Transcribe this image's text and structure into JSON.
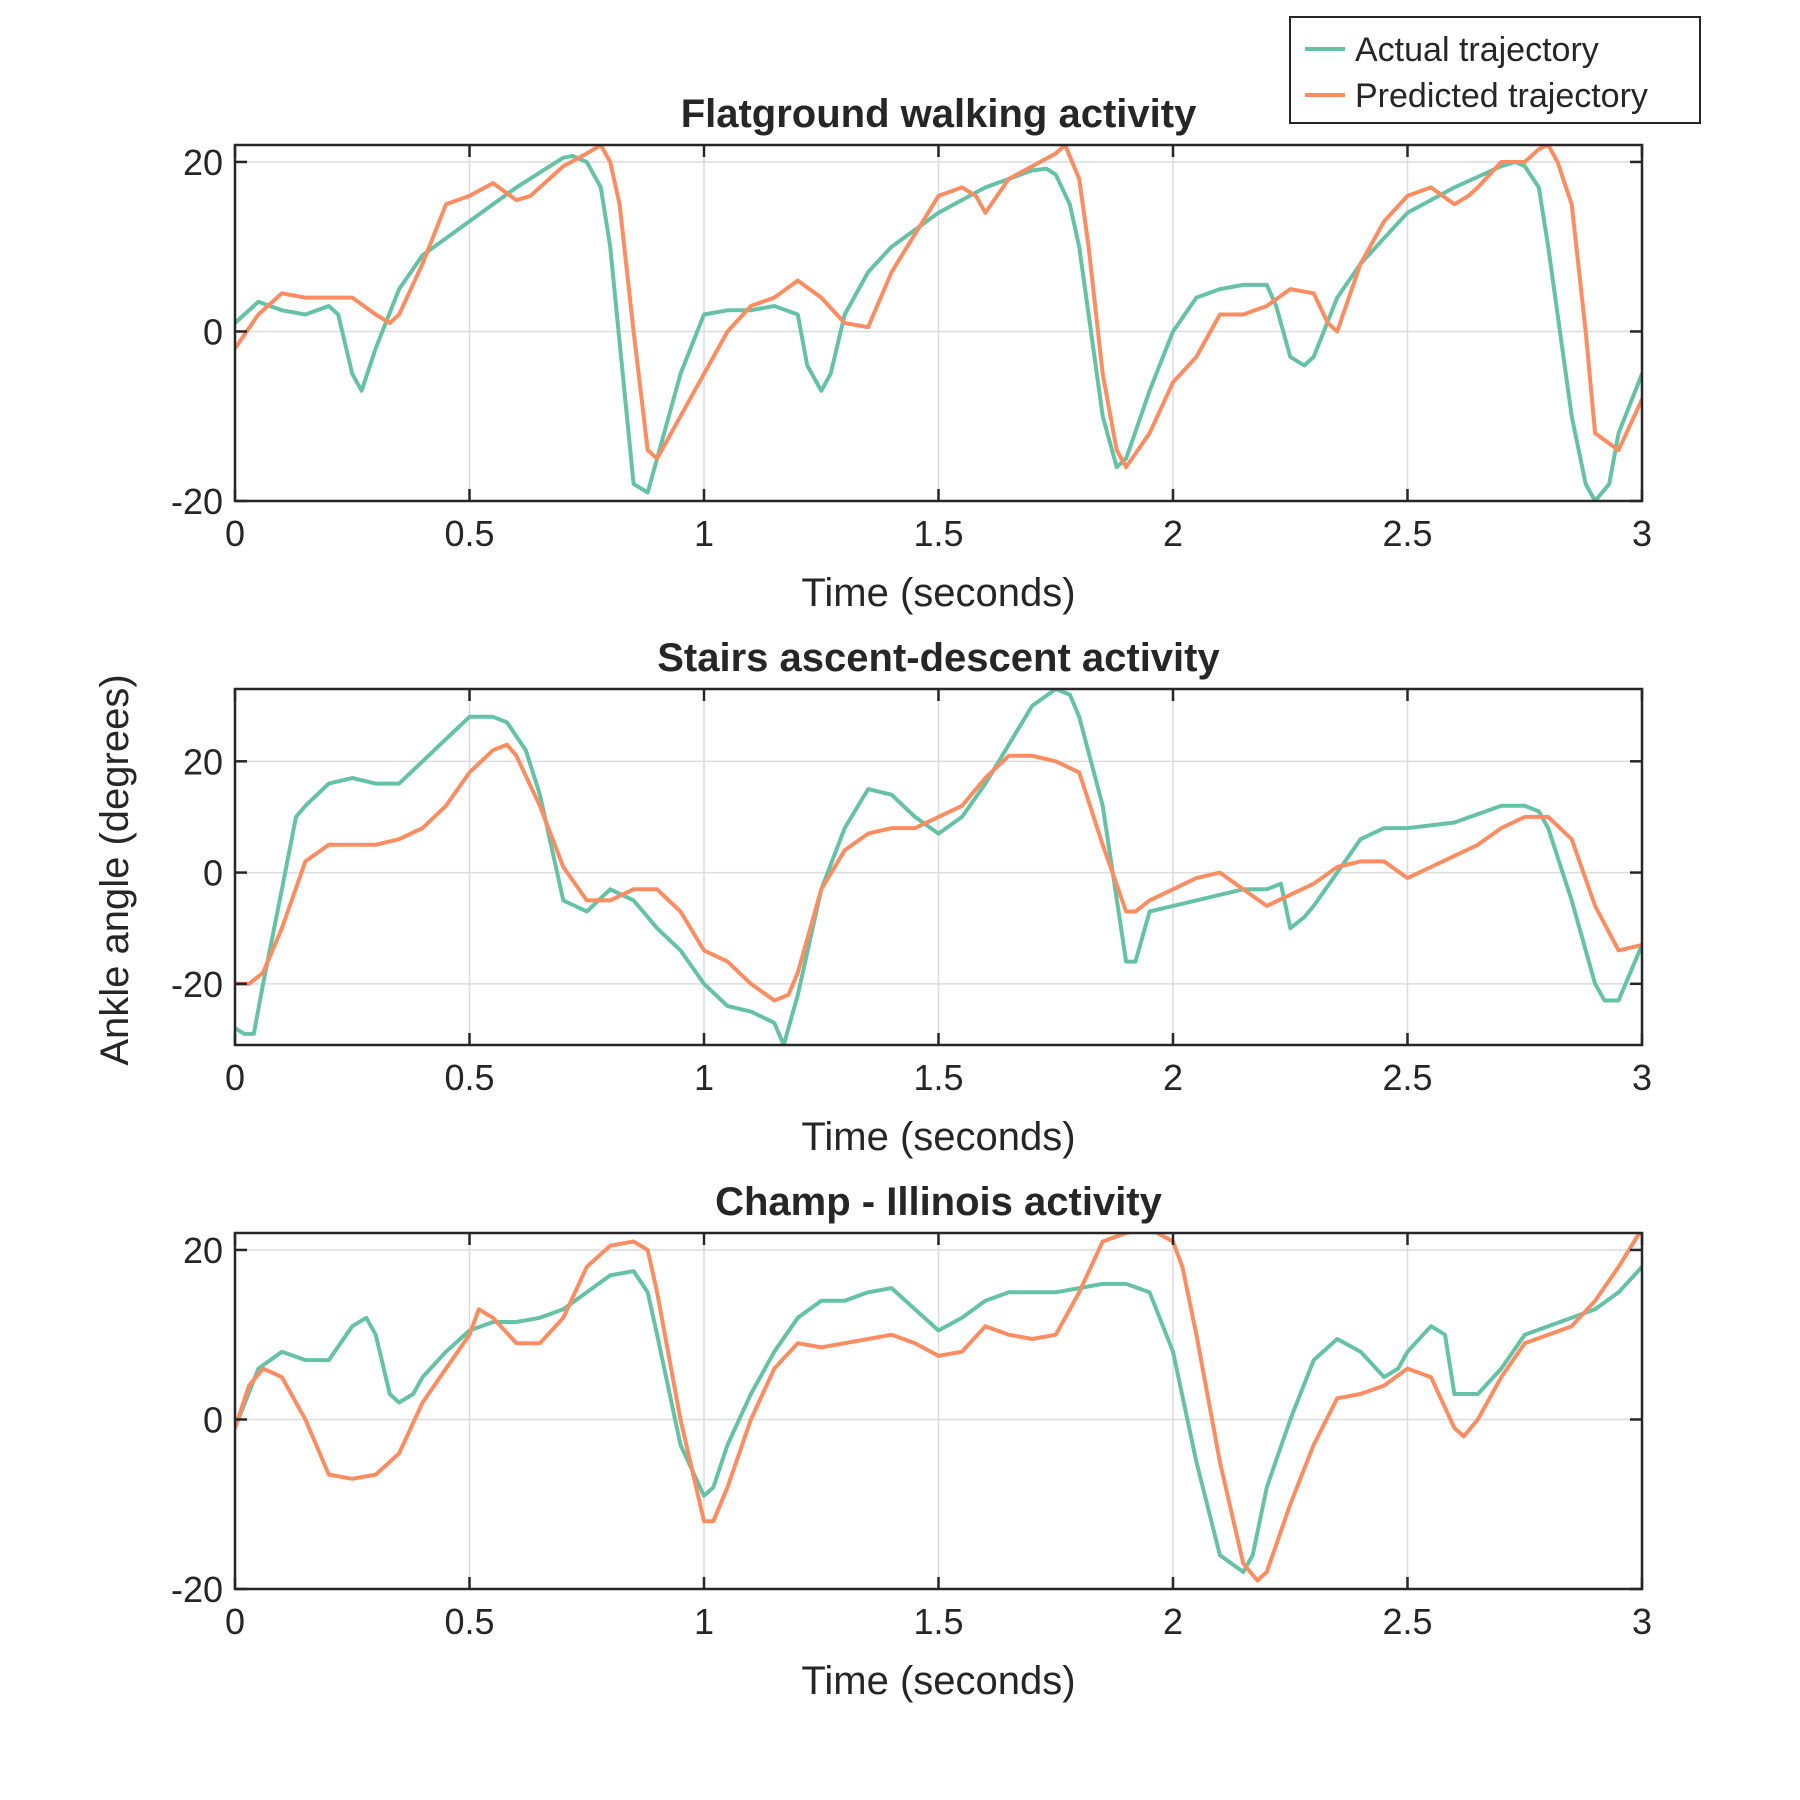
{
  "figure": {
    "ylabel": "Ankle angle (degrees)",
    "legend": {
      "position": "top-right",
      "items": [
        {
          "label": "Actual trajectory",
          "color": "#66c2a5"
        },
        {
          "label": "Predicted trajectory",
          "color": "#fc8d62"
        }
      ]
    }
  },
  "chart_data": [
    {
      "type": "line",
      "title": "Flatground walking activity",
      "xlabel": "Time (seconds)",
      "ylabel": "",
      "xlim": [
        0,
        3
      ],
      "ylim": [
        -20,
        22
      ],
      "xticks": [
        0,
        0.5,
        1,
        1.5,
        2,
        2.5,
        3
      ],
      "xtick_labels": [
        "0",
        "0.5",
        "1",
        "1.5",
        "2",
        "2.5",
        "3"
      ],
      "yticks": [
        -20,
        0,
        20
      ],
      "ytick_labels": [
        "-20",
        "0",
        "20"
      ],
      "grid": true,
      "series": [
        {
          "name": "Actual trajectory",
          "color": "#66c2a5",
          "x": [
            0,
            0.05,
            0.1,
            0.15,
            0.2,
            0.22,
            0.25,
            0.27,
            0.3,
            0.35,
            0.4,
            0.5,
            0.6,
            0.7,
            0.72,
            0.75,
            0.78,
            0.8,
            0.85,
            0.88,
            0.9,
            0.95,
            1.0,
            1.05,
            1.1,
            1.15,
            1.2,
            1.22,
            1.25,
            1.27,
            1.3,
            1.35,
            1.4,
            1.5,
            1.6,
            1.7,
            1.73,
            1.75,
            1.78,
            1.8,
            1.85,
            1.88,
            1.9,
            1.95,
            2.0,
            2.05,
            2.1,
            2.15,
            2.2,
            2.22,
            2.25,
            2.28,
            2.3,
            2.35,
            2.4,
            2.5,
            2.6,
            2.7,
            2.73,
            2.75,
            2.78,
            2.8,
            2.85,
            2.88,
            2.9,
            2.93,
            2.95,
            3.0
          ],
          "y": [
            1,
            3.5,
            2.5,
            2,
            3,
            2,
            -5,
            -7,
            -2,
            5,
            9,
            13,
            17,
            20.5,
            20.7,
            20,
            17,
            10,
            -18,
            -19,
            -15,
            -5,
            2,
            2.5,
            2.5,
            3,
            2,
            -4,
            -7,
            -5,
            2,
            7,
            10,
            14,
            17,
            19,
            19.2,
            18.5,
            15,
            10,
            -10,
            -16,
            -15,
            -7,
            0,
            4,
            5,
            5.5,
            5.5,
            3,
            -3,
            -4,
            -3,
            4,
            8,
            14,
            17,
            19.5,
            20,
            19.5,
            17,
            10,
            -10,
            -18,
            -20,
            -18,
            -12,
            -5
          ]
        },
        {
          "name": "Predicted trajectory",
          "color": "#fc8d62",
          "x": [
            0,
            0.05,
            0.1,
            0.15,
            0.2,
            0.25,
            0.3,
            0.33,
            0.35,
            0.4,
            0.45,
            0.5,
            0.55,
            0.6,
            0.63,
            0.65,
            0.7,
            0.75,
            0.78,
            0.8,
            0.82,
            0.85,
            0.88,
            0.9,
            0.95,
            1.0,
            1.05,
            1.1,
            1.15,
            1.2,
            1.25,
            1.3,
            1.35,
            1.4,
            1.5,
            1.55,
            1.58,
            1.6,
            1.65,
            1.7,
            1.75,
            1.77,
            1.8,
            1.82,
            1.85,
            1.88,
            1.9,
            1.95,
            2.0,
            2.05,
            2.1,
            2.15,
            2.2,
            2.25,
            2.3,
            2.33,
            2.35,
            2.4,
            2.45,
            2.5,
            2.55,
            2.6,
            2.63,
            2.65,
            2.7,
            2.75,
            2.78,
            2.8,
            2.82,
            2.85,
            2.88,
            2.9,
            2.95,
            3.0
          ],
          "y": [
            -2,
            2,
            4.5,
            4,
            4,
            4,
            2,
            1,
            2,
            8,
            15,
            16,
            17.5,
            15.5,
            16,
            17,
            19.5,
            21,
            22,
            20,
            15,
            0,
            -14,
            -15,
            -10,
            -5,
            0,
            3,
            4,
            6,
            4,
            1,
            0.5,
            7,
            16,
            17,
            16,
            14,
            18,
            19.5,
            21,
            22,
            18,
            10,
            -5,
            -14,
            -16,
            -12,
            -6,
            -3,
            2,
            2,
            3,
            5,
            4.5,
            1,
            0,
            8,
            13,
            16,
            17,
            15,
            16,
            17,
            20,
            20,
            21.5,
            22,
            20,
            15,
            0,
            -12,
            -14,
            -8
          ]
        }
      ]
    },
    {
      "type": "line",
      "title": "Stairs ascent-descent activity",
      "xlabel": "Time (seconds)",
      "ylabel": "",
      "xlim": [
        0,
        3
      ],
      "ylim": [
        -31,
        33
      ],
      "xticks": [
        0,
        0.5,
        1,
        1.5,
        2,
        2.5,
        3
      ],
      "xtick_labels": [
        "0",
        "0.5",
        "1",
        "1.5",
        "2",
        "2.5",
        "3"
      ],
      "yticks": [
        -20,
        0,
        20
      ],
      "ytick_labels": [
        "-20",
        "0",
        "20"
      ],
      "grid": true,
      "series": [
        {
          "name": "Actual trajectory",
          "color": "#66c2a5",
          "x": [
            0,
            0.02,
            0.04,
            0.06,
            0.1,
            0.13,
            0.15,
            0.2,
            0.25,
            0.3,
            0.35,
            0.4,
            0.45,
            0.5,
            0.55,
            0.58,
            0.62,
            0.65,
            0.7,
            0.75,
            0.8,
            0.85,
            0.9,
            0.95,
            1.0,
            1.05,
            1.1,
            1.15,
            1.17,
            1.2,
            1.25,
            1.3,
            1.35,
            1.4,
            1.45,
            1.5,
            1.55,
            1.6,
            1.65,
            1.7,
            1.75,
            1.78,
            1.8,
            1.85,
            1.9,
            1.92,
            1.95,
            2.0,
            2.05,
            2.1,
            2.15,
            2.2,
            2.23,
            2.25,
            2.28,
            2.3,
            2.35,
            2.4,
            2.45,
            2.5,
            2.6,
            2.7,
            2.75,
            2.78,
            2.8,
            2.85,
            2.9,
            2.92,
            2.95,
            3.0
          ],
          "y": [
            -28,
            -29,
            -29,
            -20,
            -3,
            10,
            12,
            16,
            17,
            16,
            16,
            20,
            24,
            28,
            28,
            27,
            22,
            14,
            -5,
            -7,
            -3,
            -5,
            -10,
            -14,
            -20,
            -24,
            -25,
            -27,
            -31,
            -22,
            -3,
            8,
            15,
            14,
            10,
            7,
            10,
            16,
            23,
            30,
            33,
            32,
            28,
            12,
            -16,
            -16,
            -7,
            -6,
            -5,
            -4,
            -3,
            -3,
            -2,
            -10,
            -8,
            -6,
            0,
            6,
            8,
            8,
            9,
            12,
            12,
            11,
            8,
            -5,
            -20,
            -23,
            -23,
            -13
          ]
        },
        {
          "name": "Predicted trajectory",
          "color": "#fc8d62",
          "x": [
            0,
            0.03,
            0.06,
            0.1,
            0.15,
            0.2,
            0.25,
            0.3,
            0.35,
            0.4,
            0.45,
            0.5,
            0.55,
            0.58,
            0.6,
            0.65,
            0.7,
            0.75,
            0.8,
            0.85,
            0.9,
            0.95,
            1.0,
            1.05,
            1.1,
            1.15,
            1.18,
            1.2,
            1.25,
            1.3,
            1.35,
            1.4,
            1.45,
            1.5,
            1.55,
            1.6,
            1.65,
            1.7,
            1.75,
            1.8,
            1.85,
            1.9,
            1.92,
            1.95,
            2.0,
            2.05,
            2.1,
            2.15,
            2.2,
            2.25,
            2.3,
            2.35,
            2.4,
            2.45,
            2.5,
            2.55,
            2.6,
            2.65,
            2.7,
            2.75,
            2.8,
            2.85,
            2.9,
            2.95,
            3.0
          ],
          "y": [
            -20,
            -20,
            -18,
            -10,
            2,
            5,
            5,
            5,
            6,
            8,
            12,
            18,
            22,
            23,
            21,
            12,
            1,
            -5,
            -5,
            -3,
            -3,
            -7,
            -14,
            -16,
            -20,
            -23,
            -22,
            -18,
            -3,
            4,
            7,
            8,
            8,
            10,
            12,
            17,
            21,
            21,
            20,
            18,
            5,
            -7,
            -7,
            -5,
            -3,
            -1,
            0,
            -3,
            -6,
            -4,
            -2,
            1,
            2,
            2,
            -1,
            1,
            3,
            5,
            8,
            10,
            10,
            6,
            -6,
            -14,
            -13
          ]
        }
      ]
    },
    {
      "type": "line",
      "title": "Champ - Illinois activity",
      "xlabel": "Time (seconds)",
      "ylabel": "",
      "xlim": [
        0,
        3
      ],
      "ylim": [
        -20,
        22
      ],
      "xticks": [
        0,
        0.5,
        1,
        1.5,
        2,
        2.5,
        3
      ],
      "xtick_labels": [
        "0",
        "0.5",
        "1",
        "1.5",
        "2",
        "2.5",
        "3"
      ],
      "yticks": [
        -20,
        0,
        20
      ],
      "ytick_labels": [
        "-20",
        "0",
        "20"
      ],
      "grid": true,
      "series": [
        {
          "name": "Actual trajectory",
          "color": "#66c2a5",
          "x": [
            0,
            0.05,
            0.1,
            0.15,
            0.2,
            0.25,
            0.28,
            0.3,
            0.33,
            0.35,
            0.38,
            0.4,
            0.45,
            0.5,
            0.55,
            0.6,
            0.65,
            0.7,
            0.75,
            0.8,
            0.85,
            0.88,
            0.9,
            0.95,
            1.0,
            1.02,
            1.05,
            1.1,
            1.15,
            1.2,
            1.25,
            1.3,
            1.35,
            1.4,
            1.45,
            1.5,
            1.55,
            1.6,
            1.65,
            1.7,
            1.75,
            1.8,
            1.85,
            1.9,
            1.95,
            2.0,
            2.05,
            2.1,
            2.15,
            2.17,
            2.2,
            2.25,
            2.3,
            2.35,
            2.4,
            2.45,
            2.48,
            2.5,
            2.55,
            2.58,
            2.6,
            2.65,
            2.7,
            2.75,
            2.8,
            2.85,
            2.9,
            2.95,
            3.0
          ],
          "y": [
            -1,
            6,
            8,
            7,
            7,
            11,
            12,
            10,
            3,
            2,
            3,
            5,
            8,
            10.5,
            11.5,
            11.5,
            12,
            13,
            15,
            17,
            17.5,
            15,
            10,
            -3,
            -9,
            -8,
            -3,
            3,
            8,
            12,
            14,
            14,
            15,
            15.5,
            13,
            10.5,
            12,
            14,
            15,
            15,
            15,
            15.5,
            16,
            16,
            15,
            8,
            -5,
            -16,
            -18,
            -16,
            -8,
            0,
            7,
            9.5,
            8,
            5,
            6,
            8,
            11,
            10,
            3,
            3,
            6,
            10,
            11,
            12,
            13,
            15,
            18
          ]
        },
        {
          "name": "Predicted trajectory",
          "color": "#fc8d62",
          "x": [
            0,
            0.03,
            0.06,
            0.1,
            0.15,
            0.2,
            0.25,
            0.3,
            0.35,
            0.4,
            0.45,
            0.5,
            0.52,
            0.55,
            0.6,
            0.65,
            0.7,
            0.75,
            0.8,
            0.85,
            0.88,
            0.9,
            0.95,
            1.0,
            1.02,
            1.05,
            1.1,
            1.15,
            1.2,
            1.25,
            1.3,
            1.35,
            1.4,
            1.45,
            1.5,
            1.55,
            1.6,
            1.65,
            1.7,
            1.75,
            1.8,
            1.85,
            1.9,
            1.95,
            2.0,
            2.02,
            2.05,
            2.1,
            2.15,
            2.18,
            2.2,
            2.25,
            2.3,
            2.35,
            2.4,
            2.45,
            2.5,
            2.55,
            2.6,
            2.62,
            2.65,
            2.7,
            2.75,
            2.8,
            2.85,
            2.9,
            2.95,
            3.0
          ],
          "y": [
            -1,
            4,
            6,
            5,
            0,
            -6.5,
            -7,
            -6.5,
            -4,
            2,
            6,
            10,
            13,
            12,
            9,
            9,
            12,
            18,
            20.5,
            21,
            20,
            15,
            0,
            -12,
            -12,
            -8,
            0,
            6,
            9,
            8.5,
            9,
            9.5,
            10,
            9,
            7.5,
            8,
            11,
            10,
            9.5,
            10,
            15,
            21,
            22,
            22.5,
            21,
            18,
            10,
            -5,
            -17,
            -19,
            -18,
            -10,
            -3,
            2.5,
            3,
            4,
            6,
            5,
            -1,
            -2,
            0,
            5,
            9,
            10,
            11,
            14,
            18,
            22.5
          ]
        }
      ]
    }
  ]
}
